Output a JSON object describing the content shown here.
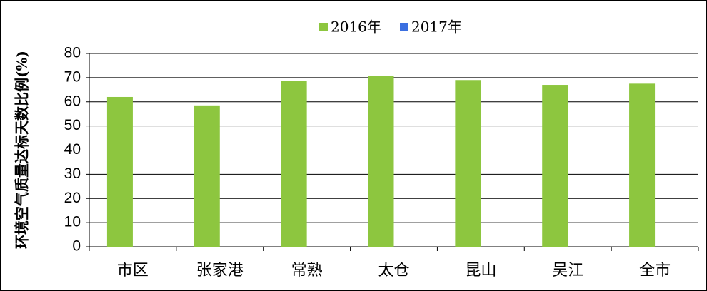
{
  "chart_data": {
    "type": "bar",
    "y_label": "环境空气质量达标天数比例(%)",
    "categories": [
      "市区",
      "张家港",
      "常熟",
      "太仓",
      "昆山",
      "吴江",
      "全市"
    ],
    "series": [
      {
        "name": "2016年",
        "color": "#8dc63f",
        "values": [
          62,
          58.5,
          68.7,
          70.8,
          69,
          67,
          67.5
        ]
      },
      {
        "name": "2017年",
        "color": "#3b6fe0",
        "values": [
          null,
          null,
          null,
          null,
          null,
          null,
          null
        ]
      }
    ],
    "ylim": [
      0,
      80
    ],
    "yticks": [
      0,
      10,
      20,
      30,
      40,
      50,
      60,
      70,
      80
    ],
    "grid": true,
    "legend": "top"
  }
}
